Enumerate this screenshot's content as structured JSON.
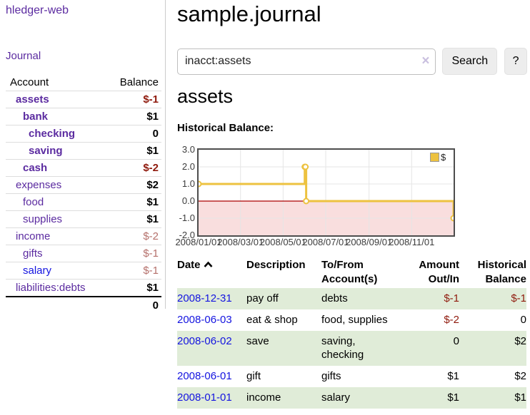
{
  "app": {
    "title": "hledger-web"
  },
  "sidebar": {
    "journal_link": "Journal",
    "accounts_table": {
      "headers": {
        "account": "Account",
        "balance": "Balance"
      },
      "rows": [
        {
          "name": "assets",
          "balance": "$-1"
        },
        {
          "name": "bank",
          "balance": "$1"
        },
        {
          "name": "checking",
          "balance": "0"
        },
        {
          "name": "saving",
          "balance": "$1"
        },
        {
          "name": "cash",
          "balance": "$-2"
        },
        {
          "name": "expenses",
          "balance": "$2"
        },
        {
          "name": "food",
          "balance": "$1"
        },
        {
          "name": "supplies",
          "balance": "$1"
        },
        {
          "name": "income",
          "balance": "$-2"
        },
        {
          "name": "gifts",
          "balance": "$-1"
        },
        {
          "name": "salary",
          "balance": "$-1"
        },
        {
          "name": "liabilities:debts",
          "balance": "$1"
        }
      ],
      "total": "0"
    }
  },
  "main": {
    "title": "sample.journal",
    "search": {
      "value": "inacct:assets",
      "clear_icon": "×",
      "search_button": "Search",
      "help_button": "?"
    },
    "account_heading": "assets",
    "chart_heading": "Historical Balance:"
  },
  "chart_data": {
    "type": "line",
    "title": "Historical Balance:",
    "legend": {
      "label": "$",
      "position": "top-right",
      "swatch_color": "#edc240"
    },
    "x": {
      "start_date": "2008-01-01",
      "end_date": "2008-12-31",
      "ticks": [
        "2008/01/01",
        "2008/03/01",
        "2008/05/01",
        "2008/07/01",
        "2008/09/01",
        "2008/11/01"
      ]
    },
    "y": {
      "min": -2,
      "max": 3,
      "ticks": [
        "3.0",
        "2.0",
        "1.0",
        "0.0",
        "-1.0",
        "-2.0"
      ]
    },
    "series": [
      {
        "name": "$",
        "color": "#edc240",
        "step": true,
        "points": [
          {
            "date": "2008-01-01",
            "value": 1
          },
          {
            "date": "2008-06-01",
            "value": 2
          },
          {
            "date": "2008-06-02",
            "value": 2
          },
          {
            "date": "2008-06-03",
            "value": 0
          },
          {
            "date": "2008-12-31",
            "value": -1
          }
        ]
      }
    ],
    "grid": true,
    "grid_color": "#e5e5e5",
    "zero_line_color": "#aa0000",
    "negative_region_color": "#f9dede",
    "border_color": "#4d4d4d"
  },
  "register_table": {
    "headers": {
      "date": "Date",
      "description": "Description",
      "account": "To/From Account(s)",
      "amount": "Amount Out/In",
      "balance": "Historical Balance"
    },
    "rows": [
      {
        "date": "2008-12-31",
        "description": "pay off",
        "account": "debts",
        "amount": "$-1",
        "balance": "$-1"
      },
      {
        "date": "2008-06-03",
        "description": "eat & shop",
        "account": "food, supplies",
        "amount": "$-2",
        "balance": "0"
      },
      {
        "date": "2008-06-02",
        "description": "save",
        "account": "saving, checking",
        "amount": "0",
        "balance": "$2"
      },
      {
        "date": "2008-06-01",
        "description": "gift",
        "account": "gifts",
        "amount": "$1",
        "balance": "$2"
      },
      {
        "date": "2008-01-01",
        "description": "income",
        "account": "salary",
        "amount": "$1",
        "balance": "$1"
      }
    ]
  }
}
